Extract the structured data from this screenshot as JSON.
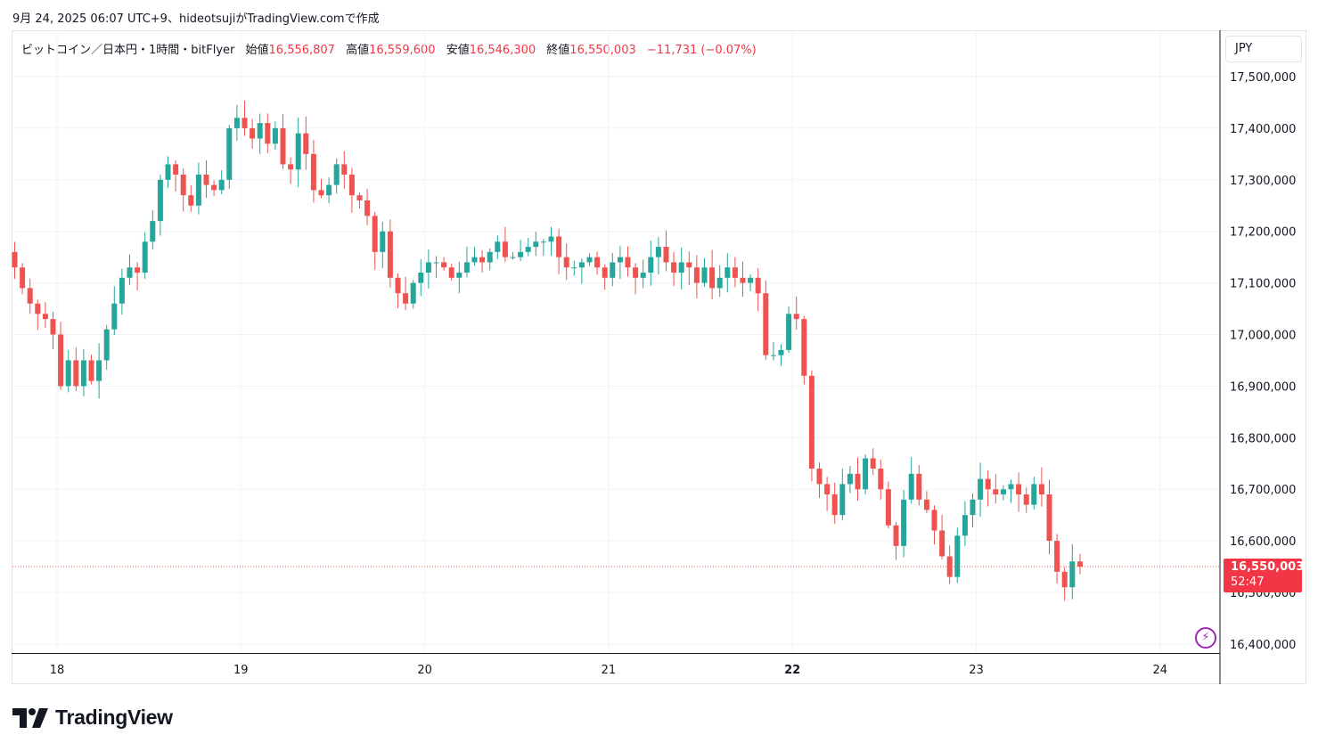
{
  "caption": "9月 24, 2025 06:07 UTC+9、hideotsujiがTradingView.comで作成",
  "legend": {
    "symbol": "ビットコイン／日本円・1時間・bitFlyer",
    "open_label": "始値",
    "open": "16,556,807",
    "high_label": "高値",
    "high": "16,559,600",
    "low_label": "安値",
    "low": "16,546,300",
    "close_label": "終値",
    "close": "16,550,003",
    "change": "−11,731 (−0.07%)"
  },
  "currency": "JPY",
  "price_badge": {
    "price": "16,550,003",
    "countdown": "52:47"
  },
  "brand": "TradingView",
  "colors": {
    "up": "#26a69a",
    "down": "#ef5350",
    "grid": "#f0f3fa",
    "axis_text": "#131722"
  },
  "chart_data": {
    "type": "candlestick",
    "interval": "1h",
    "y_ticks": [
      16400000,
      16500000,
      16600000,
      16700000,
      16800000,
      16900000,
      17000000,
      17100000,
      17200000,
      17300000,
      17400000,
      17500000
    ],
    "y_tick_labels": [
      "16,400,000",
      "16,500,000",
      "16,600,000",
      "16,700,000",
      "16,800,000",
      "16,900,000",
      "17,000,000",
      "17,100,000",
      "17,200,000",
      "17,300,000",
      "17,400,000",
      "17,500,000"
    ],
    "x_labels": [
      "18",
      "19",
      "20",
      "21",
      "22",
      "23",
      "24"
    ],
    "bold_x_label": "22",
    "ylim": [
      16380000,
      17560000
    ],
    "last_price": 16550003,
    "closes": [
      17130000,
      17090000,
      17060000,
      17040000,
      17030000,
      17000000,
      16900000,
      16950000,
      16900000,
      16950000,
      16910000,
      16950000,
      17010000,
      17060000,
      17110000,
      17130000,
      17120000,
      17180000,
      17220000,
      17300000,
      17330000,
      17310000,
      17270000,
      17250000,
      17310000,
      17290000,
      17280000,
      17300000,
      17400000,
      17420000,
      17400000,
      17380000,
      17410000,
      17370000,
      17400000,
      17330000,
      17320000,
      17390000,
      17350000,
      17280000,
      17270000,
      17290000,
      17330000,
      17310000,
      17270000,
      17260000,
      17230000,
      17160000,
      17200000,
      17110000,
      17080000,
      17060000,
      17100000,
      17120000,
      17140000,
      17140000,
      17130000,
      17110000,
      17120000,
      17140000,
      17150000,
      17140000,
      17160000,
      17180000,
      17150000,
      17150000,
      17160000,
      17170000,
      17180000,
      17180000,
      17190000,
      17150000,
      17130000,
      17130000,
      17140000,
      17150000,
      17130000,
      17110000,
      17140000,
      17150000,
      17130000,
      17110000,
      17120000,
      17150000,
      17170000,
      17140000,
      17120000,
      17140000,
      17130000,
      17100000,
      17130000,
      17090000,
      17110000,
      17130000,
      17110000,
      17100000,
      17110000,
      17080000,
      16960000,
      16960000,
      16970000,
      17040000,
      17030000,
      16920000,
      16740000,
      16710000,
      16690000,
      16650000,
      16710000,
      16730000,
      16700000,
      16760000,
      16740000,
      16700000,
      16630000,
      16590000,
      16680000,
      16730000,
      16680000,
      16660000,
      16620000,
      16570000,
      16530000,
      16610000,
      16650000,
      16680000,
      16720000,
      16700000,
      16690000,
      16700000,
      16710000,
      16690000,
      16670000,
      16710000,
      16690000,
      16600000,
      16540000,
      16510000,
      16560000,
      16550003
    ]
  }
}
